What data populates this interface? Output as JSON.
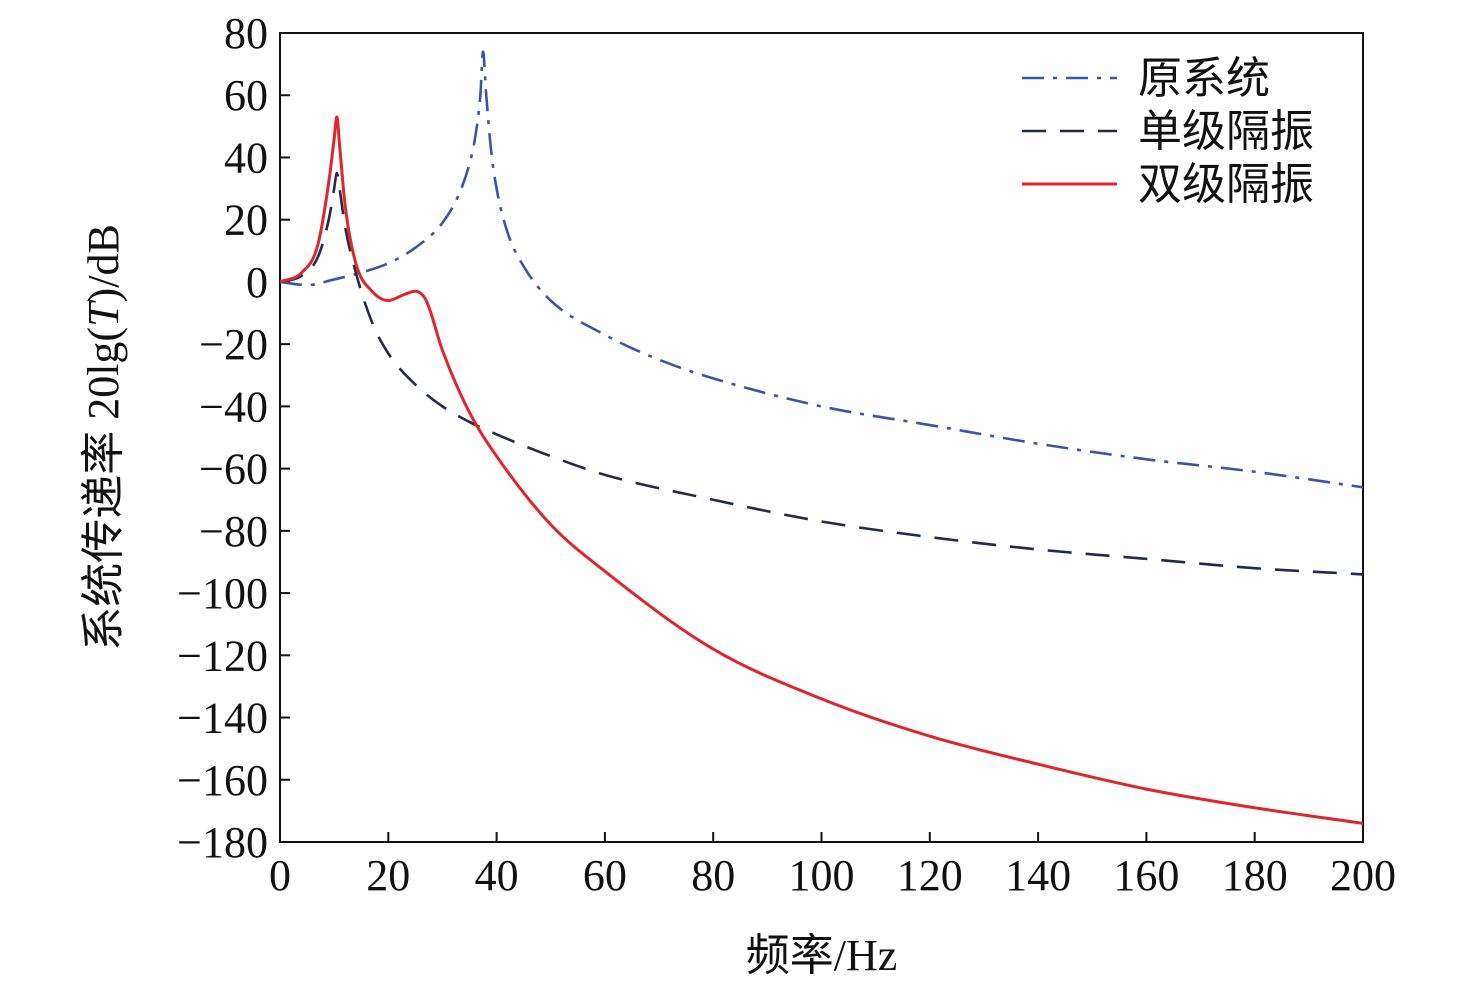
{
  "chart_data": {
    "type": "line",
    "title": "",
    "xlabel": "频率/Hz",
    "ylabel": {
      "prefix": "系统传递率 20lg(",
      "italic": "T",
      "suffix": ")/dB"
    },
    "xlim": [
      0,
      200
    ],
    "ylim": [
      -180,
      80
    ],
    "xticks": [
      0,
      20,
      40,
      60,
      80,
      100,
      120,
      140,
      160,
      180,
      200
    ],
    "yticks": [
      80,
      60,
      40,
      20,
      0,
      -20,
      -40,
      -60,
      -80,
      -100,
      -120,
      -140,
      -160,
      -180
    ],
    "ytick_labels": [
      "80",
      "60",
      "40",
      "20",
      "0",
      "−20",
      "−40",
      "−60",
      "−80",
      "−100",
      "−120",
      "−140",
      "−160",
      "−180"
    ],
    "grid": false,
    "legend_position": "top-right",
    "series": [
      {
        "name": "原系统",
        "style": "dashdot",
        "color": "#3a55a4",
        "x": [
          0,
          5,
          10,
          15,
          20,
          25,
          30,
          33,
          35,
          36,
          37,
          37.5,
          38,
          39,
          40,
          42,
          45,
          50,
          60,
          70,
          80,
          100,
          120,
          140,
          160,
          180,
          200
        ],
        "y": [
          0,
          -1,
          0.8,
          3,
          6,
          11,
          19,
          28,
          38,
          46,
          60,
          74,
          62,
          42,
          30,
          16,
          5,
          -6,
          -17,
          -25,
          -31,
          -40,
          -46,
          -52,
          -57,
          -61,
          -66
        ]
      },
      {
        "name": "单级隔振",
        "style": "dashed",
        "color": "#232a4e",
        "x": [
          0,
          4,
          7,
          9,
          10,
          10.5,
          11,
          12,
          14,
          17,
          20,
          25,
          30,
          35,
          40,
          50,
          60,
          80,
          100,
          120,
          140,
          160,
          180,
          200
        ],
        "y": [
          0,
          2,
          8,
          20,
          30,
          35,
          30,
          18,
          3,
          -13,
          -23,
          -33,
          -40,
          -45,
          -49,
          -56,
          -62,
          -70,
          -77,
          -82,
          -86,
          -89,
          -92,
          -94
        ]
      },
      {
        "name": "双级隔振",
        "style": "solid",
        "color": "#e0252b",
        "x": [
          0,
          4,
          7,
          9,
          10,
          10.5,
          11,
          12,
          14,
          17,
          20,
          23,
          25,
          27,
          30,
          35,
          40,
          50,
          60,
          80,
          100,
          120,
          140,
          160,
          180,
          200
        ],
        "y": [
          0,
          3,
          12,
          32,
          46,
          53,
          44,
          25,
          6,
          -3,
          -6,
          -4,
          -3,
          -6,
          -22,
          -42,
          -56,
          -78,
          -93,
          -118,
          -134,
          -146,
          -155,
          -163,
          -169,
          -174
        ]
      }
    ]
  }
}
